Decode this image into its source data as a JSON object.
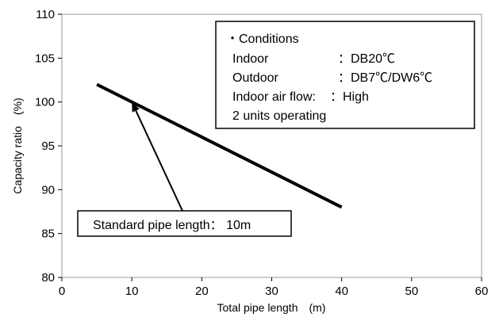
{
  "chart_data": {
    "type": "line",
    "title": "",
    "xlabel": "Total pipe length　(m)",
    "ylabel": "Capacity ratio　(%)",
    "xlim": [
      0,
      60
    ],
    "ylim": [
      80,
      110
    ],
    "grid": false,
    "x_ticks": [
      "0",
      "10",
      "20",
      "30",
      "40",
      "50",
      "60"
    ],
    "y_ticks": [
      "80",
      "85",
      "90",
      "95",
      "100",
      "105",
      "110"
    ],
    "series": [
      {
        "x": [
          5,
          40
        ],
        "y": [
          102,
          88
        ],
        "color": "#000000"
      }
    ]
  },
  "conditions": {
    "heading": "・Conditions",
    "rows": [
      {
        "label": "Indoor",
        "value": "：DB20℃"
      },
      {
        "label": "Outdoor",
        "value": "：DB7℃/DW6℃"
      },
      {
        "label": "Indoor air flow:",
        "value": "：High"
      },
      {
        "label": "2 units operating",
        "value": ""
      }
    ]
  },
  "annotation": {
    "text": "Standard pipe length： 10m",
    "point": {
      "x": 10,
      "y": 100
    }
  }
}
